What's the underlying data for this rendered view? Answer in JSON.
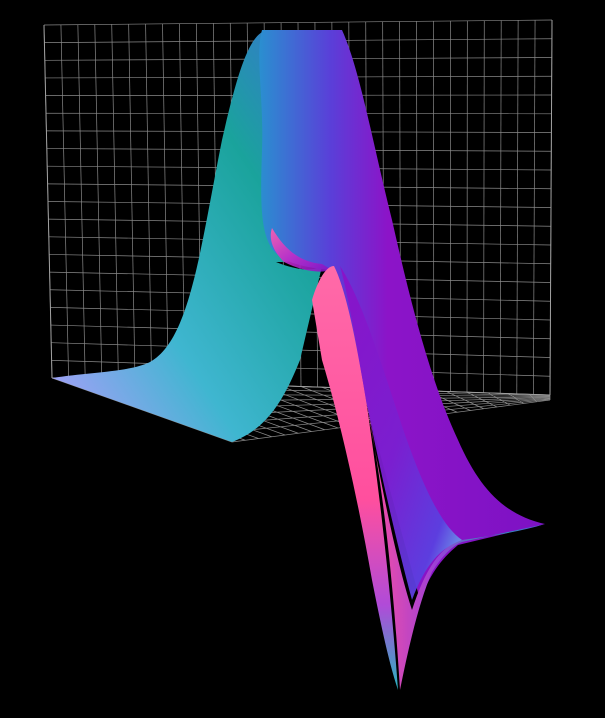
{
  "chart_data": {
    "type": "surface3d",
    "title": "",
    "xlabel": "",
    "ylabel": "",
    "zlabel": "",
    "background": "#000000",
    "grid": true,
    "grid_color": "#8a8a8a",
    "axis_ticks_visible": false,
    "colormap": [
      "#b28bff",
      "#3fb0c8",
      "#1a9e9a",
      "#6a2bd8",
      "#8a10c8",
      "#ff5fa8"
    ],
    "surface": {
      "description_free": true,
      "x_range": [
        -3,
        3
      ],
      "y_range": [
        -3,
        3
      ],
      "z_range": [
        -1,
        1
      ],
      "peak_z": 1.0,
      "trough_z": -0.9,
      "z_at_edges": 0.0
    }
  }
}
